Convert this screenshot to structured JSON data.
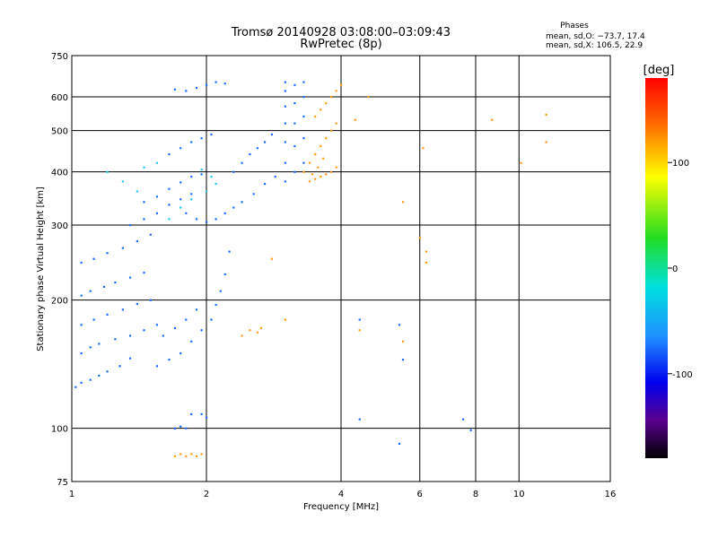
{
  "chart_data": {
    "type": "scatter",
    "title": "Tromsø 20140928 03:08:00–03:09:43",
    "subtitle": "RwPretec (8p)",
    "xlabel": "Frequency [MHz]",
    "ylabel": "Stationary phase Virtual Height [km]",
    "x_scale": "log",
    "y_scale": "log",
    "xlim": [
      1,
      16
    ],
    "ylim": [
      75,
      750
    ],
    "x_ticks": [
      1,
      2,
      4,
      6,
      8,
      10,
      16
    ],
    "y_ticks": [
      75,
      100,
      200,
      300,
      400,
      500,
      600,
      750
    ],
    "x_gridlines": [
      2,
      4,
      6,
      8,
      10
    ],
    "y_gridlines": [
      100,
      200,
      300,
      400,
      500,
      600
    ],
    "grid": true,
    "stats_header": "Phases",
    "stats": [
      "mean, sd,O: −73.7, 17.4",
      "mean, sd,X: 106.5, 22.9"
    ],
    "colorbar": {
      "label": "[deg]",
      "range": [
        -180,
        180
      ],
      "ticks": [
        100,
        0,
        -100
      ]
    },
    "series": [
      {
        "values": [
          [
            1.02,
            125
          ],
          [
            1.05,
            128
          ],
          [
            1.1,
            130
          ],
          [
            1.15,
            133
          ],
          [
            1.2,
            136
          ],
          [
            1.28,
            140
          ],
          [
            1.35,
            146
          ],
          [
            1.05,
            150
          ],
          [
            1.1,
            155
          ],
          [
            1.15,
            158
          ],
          [
            1.25,
            162
          ],
          [
            1.35,
            165
          ],
          [
            1.45,
            170
          ],
          [
            1.55,
            175
          ],
          [
            1.05,
            175
          ],
          [
            1.12,
            180
          ],
          [
            1.2,
            185
          ],
          [
            1.3,
            190
          ],
          [
            1.4,
            196
          ],
          [
            1.5,
            200
          ],
          [
            1.05,
            205
          ],
          [
            1.1,
            210
          ],
          [
            1.18,
            215
          ],
          [
            1.25,
            220
          ],
          [
            1.35,
            226
          ],
          [
            1.45,
            232
          ],
          [
            1.05,
            245
          ],
          [
            1.12,
            250
          ],
          [
            1.2,
            258
          ],
          [
            1.3,
            265
          ],
          [
            1.4,
            275
          ],
          [
            1.5,
            285
          ],
          [
            1.35,
            300
          ],
          [
            1.45,
            310
          ],
          [
            1.55,
            320
          ],
          [
            1.65,
            335
          ],
          [
            1.75,
            345
          ],
          [
            1.85,
            355
          ],
          [
            1.45,
            340
          ],
          [
            1.55,
            350
          ],
          [
            1.65,
            365
          ],
          [
            1.75,
            378
          ],
          [
            1.85,
            390
          ],
          [
            1.95,
            395
          ],
          [
            1.65,
            440
          ],
          [
            1.75,
            455
          ],
          [
            1.85,
            470
          ],
          [
            1.95,
            480
          ],
          [
            2.05,
            490
          ],
          [
            1.8,
            320
          ],
          [
            1.9,
            310
          ],
          [
            2.0,
            305
          ],
          [
            2.1,
            310
          ],
          [
            2.2,
            320
          ],
          [
            2.3,
            330
          ],
          [
            2.4,
            340
          ],
          [
            2.55,
            355
          ],
          [
            2.7,
            375
          ],
          [
            2.85,
            390
          ],
          [
            2.3,
            400
          ],
          [
            2.4,
            420
          ],
          [
            2.5,
            440
          ],
          [
            2.6,
            455
          ],
          [
            2.7,
            470
          ],
          [
            2.8,
            490
          ],
          [
            1.55,
            140
          ],
          [
            1.65,
            145
          ],
          [
            1.75,
            150
          ],
          [
            1.85,
            160
          ],
          [
            1.95,
            170
          ],
          [
            2.05,
            180
          ],
          [
            2.1,
            195
          ],
          [
            2.15,
            210
          ],
          [
            2.2,
            230
          ],
          [
            2.25,
            260
          ],
          [
            1.6,
            165
          ],
          [
            1.7,
            172
          ],
          [
            1.8,
            180
          ],
          [
            1.9,
            190
          ],
          [
            1.7,
            625
          ],
          [
            1.8,
            620
          ],
          [
            1.9,
            630
          ],
          [
            2.0,
            640
          ],
          [
            2.1,
            650
          ],
          [
            2.2,
            645
          ],
          [
            3.0,
            380
          ],
          [
            3.0,
            420
          ],
          [
            3.0,
            470
          ],
          [
            3.0,
            520
          ],
          [
            3.0,
            570
          ],
          [
            3.0,
            620
          ],
          [
            3.0,
            650
          ],
          [
            3.15,
            400
          ],
          [
            3.15,
            460
          ],
          [
            3.15,
            520
          ],
          [
            3.15,
            580
          ],
          [
            3.15,
            640
          ],
          [
            3.3,
            420
          ],
          [
            3.3,
            480
          ],
          [
            3.3,
            540
          ],
          [
            3.3,
            600
          ],
          [
            3.3,
            650
          ],
          [
            1.7,
            100
          ],
          [
            1.75,
            101
          ],
          [
            1.8,
            100
          ],
          [
            1.85,
            108
          ],
          [
            1.95,
            108
          ],
          [
            2.0,
            106
          ],
          [
            4.4,
            105
          ],
          [
            5.4,
            92
          ],
          [
            5.5,
            145
          ],
          [
            7.5,
            105
          ],
          [
            7.8,
            99
          ],
          [
            5.4,
            175
          ],
          [
            4.4,
            180
          ]
        ]
      },
      {
        "values": [
          [
            3.4,
            380
          ],
          [
            3.5,
            385
          ],
          [
            3.6,
            390
          ],
          [
            3.7,
            395
          ],
          [
            3.8,
            400
          ],
          [
            3.9,
            410
          ],
          [
            3.4,
            420
          ],
          [
            3.5,
            440
          ],
          [
            3.6,
            460
          ],
          [
            3.7,
            480
          ],
          [
            3.8,
            500
          ],
          [
            3.9,
            520
          ],
          [
            3.5,
            540
          ],
          [
            3.6,
            560
          ],
          [
            3.7,
            580
          ],
          [
            3.8,
            600
          ],
          [
            3.9,
            620
          ],
          [
            4.0,
            640
          ],
          [
            3.3,
            400
          ],
          [
            3.45,
            395
          ],
          [
            3.55,
            410
          ],
          [
            3.65,
            430
          ],
          [
            1.7,
            86
          ],
          [
            1.75,
            87
          ],
          [
            1.8,
            86
          ],
          [
            1.85,
            87
          ],
          [
            1.9,
            86
          ],
          [
            1.95,
            87
          ],
          [
            2.4,
            165
          ],
          [
            2.5,
            170
          ],
          [
            2.6,
            168
          ],
          [
            2.65,
            172
          ],
          [
            4.4,
            170
          ],
          [
            5.5,
            160
          ],
          [
            6.2,
            260
          ],
          [
            6.2,
            245
          ],
          [
            6.0,
            280
          ],
          [
            5.5,
            340
          ],
          [
            8.7,
            530
          ],
          [
            11.5,
            545
          ],
          [
            11.5,
            470
          ],
          [
            10.1,
            420
          ],
          [
            4.3,
            530
          ],
          [
            4.6,
            600
          ],
          [
            6.1,
            455
          ],
          [
            2.8,
            250
          ],
          [
            3.0,
            180
          ]
        ]
      },
      {
        "values": [
          [
            1.65,
            310
          ],
          [
            1.75,
            330
          ],
          [
            1.85,
            345
          ],
          [
            2.0,
            360
          ],
          [
            2.1,
            375
          ],
          [
            2.05,
            390
          ],
          [
            1.95,
            405
          ],
          [
            1.2,
            400
          ],
          [
            1.3,
            380
          ],
          [
            1.4,
            360
          ],
          [
            1.45,
            410
          ],
          [
            1.55,
            420
          ]
        ]
      }
    ]
  }
}
